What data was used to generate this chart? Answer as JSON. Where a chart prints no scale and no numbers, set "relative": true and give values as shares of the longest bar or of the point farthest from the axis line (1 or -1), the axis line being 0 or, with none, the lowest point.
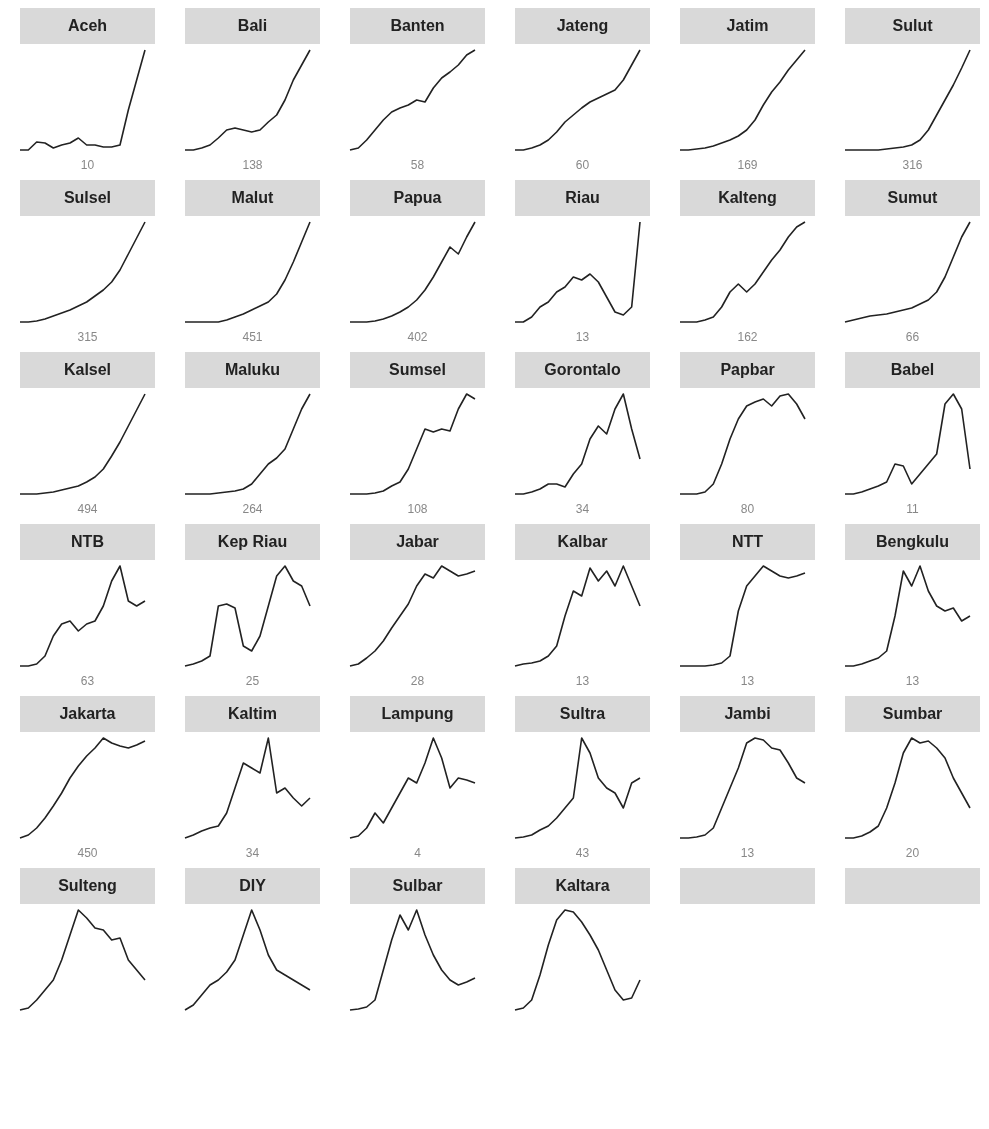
{
  "chart_data": [
    {
      "type": "line",
      "title": "Aceh",
      "relative": true,
      "color": "#222222",
      "annotations": [
        "10"
      ],
      "categories": [
        null,
        null,
        null,
        null,
        null,
        null,
        null,
        null,
        null,
        null,
        null,
        null,
        null,
        null,
        null,
        null
      ],
      "values": [
        0,
        0,
        0.08,
        0.07,
        0.02,
        0.05,
        0.07,
        0.12,
        0.05,
        0.05,
        0.03,
        0.03,
        0.05,
        0.4,
        0.7,
        1
      ]
    },
    {
      "type": "line",
      "title": "Bali",
      "relative": true,
      "color": "#222222",
      "annotations": [
        "138"
      ],
      "categories": [
        null,
        null,
        null,
        null,
        null,
        null,
        null,
        null,
        null,
        null,
        null,
        null,
        null,
        null,
        null,
        null
      ],
      "values": [
        0,
        0,
        0.02,
        0.05,
        0.12,
        0.2,
        0.22,
        0.2,
        0.18,
        0.2,
        0.28,
        0.35,
        0.5,
        0.7,
        0.85,
        1
      ]
    },
    {
      "type": "line",
      "title": "Banten",
      "relative": true,
      "color": "#222222",
      "annotations": [
        "58"
      ],
      "categories": [
        null,
        null,
        null,
        null,
        null,
        null,
        null,
        null,
        null,
        null,
        null,
        null,
        null,
        null,
        null,
        null
      ],
      "values": [
        0,
        0.02,
        0.1,
        0.2,
        0.3,
        0.38,
        0.42,
        0.45,
        0.5,
        0.48,
        0.62,
        0.72,
        0.78,
        0.85,
        0.95,
        1
      ]
    },
    {
      "type": "line",
      "title": "Jateng",
      "relative": true,
      "color": "#222222",
      "annotations": [
        "60"
      ],
      "categories": [
        null,
        null,
        null,
        null,
        null,
        null,
        null,
        null,
        null,
        null,
        null,
        null,
        null,
        null,
        null,
        null
      ],
      "values": [
        0,
        0,
        0.02,
        0.05,
        0.1,
        0.18,
        0.28,
        0.35,
        0.42,
        0.48,
        0.52,
        0.56,
        0.6,
        0.7,
        0.85,
        1
      ]
    },
    {
      "type": "line",
      "title": "Jatim",
      "relative": true,
      "color": "#222222",
      "annotations": [
        "169"
      ],
      "categories": [
        null,
        null,
        null,
        null,
        null,
        null,
        null,
        null,
        null,
        null,
        null,
        null,
        null,
        null,
        null,
        null
      ],
      "values": [
        0,
        0,
        0.01,
        0.02,
        0.04,
        0.07,
        0.1,
        0.14,
        0.2,
        0.3,
        0.45,
        0.58,
        0.68,
        0.8,
        0.9,
        1
      ]
    },
    {
      "type": "line",
      "title": "Sulut",
      "relative": true,
      "color": "#222222",
      "annotations": [
        "316"
      ],
      "categories": [
        null,
        null,
        null,
        null,
        null,
        null,
        null,
        null,
        null,
        null,
        null,
        null,
        null,
        null,
        null,
        null
      ],
      "values": [
        0,
        0,
        0,
        0,
        0,
        0.01,
        0.02,
        0.03,
        0.05,
        0.1,
        0.2,
        0.35,
        0.5,
        0.65,
        0.82,
        1
      ]
    },
    {
      "type": "line",
      "title": "Sulsel",
      "relative": true,
      "color": "#222222",
      "annotations": [
        "315"
      ],
      "categories": [
        null,
        null,
        null,
        null,
        null,
        null,
        null,
        null,
        null,
        null,
        null,
        null,
        null,
        null,
        null,
        null
      ],
      "values": [
        0,
        0,
        0.01,
        0.03,
        0.06,
        0.09,
        0.12,
        0.16,
        0.2,
        0.26,
        0.32,
        0.4,
        0.52,
        0.68,
        0.84,
        1
      ]
    },
    {
      "type": "line",
      "title": "Malut",
      "relative": true,
      "color": "#222222",
      "annotations": [
        "451"
      ],
      "categories": [
        null,
        null,
        null,
        null,
        null,
        null,
        null,
        null,
        null,
        null,
        null,
        null,
        null,
        null,
        null,
        null
      ],
      "values": [
        0,
        0,
        0,
        0,
        0,
        0.02,
        0.05,
        0.08,
        0.12,
        0.16,
        0.2,
        0.28,
        0.42,
        0.6,
        0.8,
        1
      ]
    },
    {
      "type": "line",
      "title": "Papua",
      "relative": true,
      "color": "#222222",
      "annotations": [
        "402"
      ],
      "categories": [
        null,
        null,
        null,
        null,
        null,
        null,
        null,
        null,
        null,
        null,
        null,
        null,
        null,
        null,
        null,
        null
      ],
      "values": [
        0,
        0,
        0,
        0.01,
        0.03,
        0.06,
        0.1,
        0.15,
        0.22,
        0.32,
        0.45,
        0.6,
        0.75,
        0.68,
        0.85,
        1
      ]
    },
    {
      "type": "line",
      "title": "Riau",
      "relative": true,
      "color": "#222222",
      "annotations": [
        "13"
      ],
      "categories": [
        null,
        null,
        null,
        null,
        null,
        null,
        null,
        null,
        null,
        null,
        null,
        null,
        null,
        null,
        null,
        null
      ],
      "values": [
        0,
        0,
        0.05,
        0.15,
        0.2,
        0.3,
        0.35,
        0.45,
        0.42,
        0.48,
        0.4,
        0.25,
        0.1,
        0.07,
        0.15,
        1
      ]
    },
    {
      "type": "line",
      "title": "Kalteng",
      "relative": true,
      "color": "#222222",
      "annotations": [
        "162"
      ],
      "categories": [
        null,
        null,
        null,
        null,
        null,
        null,
        null,
        null,
        null,
        null,
        null,
        null,
        null,
        null,
        null,
        null
      ],
      "values": [
        0,
        0,
        0,
        0.02,
        0.05,
        0.15,
        0.3,
        0.38,
        0.3,
        0.38,
        0.5,
        0.62,
        0.72,
        0.85,
        0.95,
        1
      ]
    },
    {
      "type": "line",
      "title": "Sumut",
      "relative": true,
      "color": "#222222",
      "annotations": [
        "66"
      ],
      "categories": [
        null,
        null,
        null,
        null,
        null,
        null,
        null,
        null,
        null,
        null,
        null,
        null,
        null,
        null,
        null,
        null
      ],
      "values": [
        0,
        0.02,
        0.04,
        0.06,
        0.07,
        0.08,
        0.1,
        0.12,
        0.14,
        0.18,
        0.22,
        0.3,
        0.45,
        0.65,
        0.85,
        1
      ]
    },
    {
      "type": "line",
      "title": "Kalsel",
      "relative": true,
      "color": "#222222",
      "annotations": [
        "494"
      ],
      "categories": [
        null,
        null,
        null,
        null,
        null,
        null,
        null,
        null,
        null,
        null,
        null,
        null,
        null,
        null,
        null,
        null
      ],
      "values": [
        0,
        0,
        0,
        0.01,
        0.02,
        0.04,
        0.06,
        0.08,
        0.12,
        0.17,
        0.25,
        0.38,
        0.52,
        0.68,
        0.84,
        1
      ]
    },
    {
      "type": "line",
      "title": "Maluku",
      "relative": true,
      "color": "#222222",
      "annotations": [
        "264"
      ],
      "categories": [
        null,
        null,
        null,
        null,
        null,
        null,
        null,
        null,
        null,
        null,
        null,
        null,
        null,
        null,
        null,
        null
      ],
      "values": [
        0,
        0,
        0,
        0,
        0.01,
        0.02,
        0.03,
        0.05,
        0.1,
        0.2,
        0.3,
        0.36,
        0.45,
        0.65,
        0.85,
        1
      ]
    },
    {
      "type": "line",
      "title": "Sumsel",
      "relative": true,
      "color": "#222222",
      "annotations": [
        "108"
      ],
      "categories": [
        null,
        null,
        null,
        null,
        null,
        null,
        null,
        null,
        null,
        null,
        null,
        null,
        null,
        null,
        null,
        null
      ],
      "values": [
        0,
        0,
        0,
        0.01,
        0.03,
        0.08,
        0.12,
        0.25,
        0.45,
        0.65,
        0.62,
        0.65,
        0.63,
        0.85,
        1,
        0.95
      ]
    },
    {
      "type": "line",
      "title": "Gorontalo",
      "relative": true,
      "color": "#222222",
      "annotations": [
        "34"
      ],
      "categories": [
        null,
        null,
        null,
        null,
        null,
        null,
        null,
        null,
        null,
        null,
        null,
        null,
        null,
        null,
        null,
        null
      ],
      "values": [
        0,
        0,
        0.02,
        0.05,
        0.1,
        0.1,
        0.07,
        0.2,
        0.3,
        0.55,
        0.68,
        0.6,
        0.85,
        1,
        0.65,
        0.35
      ]
    },
    {
      "type": "line",
      "title": "Papbar",
      "relative": true,
      "color": "#222222",
      "annotations": [
        "80"
      ],
      "categories": [
        null,
        null,
        null,
        null,
        null,
        null,
        null,
        null,
        null,
        null,
        null,
        null,
        null,
        null,
        null,
        null
      ],
      "values": [
        0,
        0,
        0,
        0.02,
        0.1,
        0.3,
        0.55,
        0.75,
        0.88,
        0.92,
        0.95,
        0.88,
        0.98,
        1,
        0.9,
        0.75
      ]
    },
    {
      "type": "line",
      "title": "Babel",
      "relative": true,
      "color": "#222222",
      "annotations": [
        "11"
      ],
      "categories": [
        null,
        null,
        null,
        null,
        null,
        null,
        null,
        null,
        null,
        null,
        null,
        null,
        null,
        null,
        null,
        null
      ],
      "values": [
        0,
        0,
        0.02,
        0.05,
        0.08,
        0.12,
        0.3,
        0.28,
        0.1,
        0.2,
        0.3,
        0.4,
        0.9,
        1,
        0.85,
        0.25
      ]
    },
    {
      "type": "line",
      "title": "NTB",
      "relative": true,
      "color": "#222222",
      "annotations": [
        "63"
      ],
      "categories": [
        null,
        null,
        null,
        null,
        null,
        null,
        null,
        null,
        null,
        null,
        null,
        null,
        null,
        null,
        null,
        null
      ],
      "values": [
        0,
        0,
        0.02,
        0.1,
        0.3,
        0.42,
        0.45,
        0.35,
        0.42,
        0.45,
        0.6,
        0.85,
        1,
        0.65,
        0.6,
        0.65
      ]
    },
    {
      "type": "line",
      "title": "Kep Riau",
      "relative": true,
      "color": "#222222",
      "annotations": [
        "25"
      ],
      "categories": [
        null,
        null,
        null,
        null,
        null,
        null,
        null,
        null,
        null,
        null,
        null,
        null,
        null,
        null,
        null,
        null
      ],
      "values": [
        0,
        0.02,
        0.05,
        0.1,
        0.6,
        0.62,
        0.58,
        0.2,
        0.15,
        0.3,
        0.6,
        0.9,
        1,
        0.85,
        0.8,
        0.6
      ]
    },
    {
      "type": "line",
      "title": "Jabar",
      "relative": true,
      "color": "#222222",
      "annotations": [
        "28"
      ],
      "categories": [
        null,
        null,
        null,
        null,
        null,
        null,
        null,
        null,
        null,
        null,
        null,
        null,
        null,
        null,
        null,
        null
      ],
      "values": [
        0,
        0.02,
        0.08,
        0.15,
        0.25,
        0.38,
        0.5,
        0.62,
        0.8,
        0.92,
        0.88,
        1,
        0.95,
        0.9,
        0.92,
        0.95
      ]
    },
    {
      "type": "line",
      "title": "Kalbar",
      "relative": true,
      "color": "#222222",
      "annotations": [
        "13"
      ],
      "categories": [
        null,
        null,
        null,
        null,
        null,
        null,
        null,
        null,
        null,
        null,
        null,
        null,
        null,
        null,
        null,
        null
      ],
      "values": [
        0,
        0.02,
        0.03,
        0.05,
        0.1,
        0.2,
        0.5,
        0.75,
        0.7,
        0.98,
        0.85,
        0.95,
        0.8,
        1,
        0.8,
        0.6
      ]
    },
    {
      "type": "line",
      "title": "NTT",
      "relative": true,
      "color": "#222222",
      "annotations": [
        "13"
      ],
      "categories": [
        null,
        null,
        null,
        null,
        null,
        null,
        null,
        null,
        null,
        null,
        null,
        null,
        null,
        null,
        null,
        null
      ],
      "values": [
        0,
        0,
        0,
        0,
        0.01,
        0.03,
        0.1,
        0.55,
        0.8,
        0.9,
        1,
        0.95,
        0.9,
        0.88,
        0.9,
        0.93
      ]
    },
    {
      "type": "line",
      "title": "Bengkulu",
      "relative": true,
      "color": "#222222",
      "annotations": [
        "13"
      ],
      "categories": [
        null,
        null,
        null,
        null,
        null,
        null,
        null,
        null,
        null,
        null,
        null,
        null,
        null,
        null,
        null,
        null
      ],
      "values": [
        0,
        0,
        0.02,
        0.05,
        0.08,
        0.15,
        0.5,
        0.95,
        0.8,
        1,
        0.75,
        0.6,
        0.55,
        0.58,
        0.45,
        0.5
      ]
    },
    {
      "type": "line",
      "title": "Jakarta",
      "relative": true,
      "color": "#222222",
      "annotations": [
        "450"
      ],
      "categories": [
        null,
        null,
        null,
        null,
        null,
        null,
        null,
        null,
        null,
        null,
        null,
        null,
        null,
        null,
        null,
        null
      ],
      "values": [
        0,
        0.03,
        0.1,
        0.2,
        0.32,
        0.45,
        0.6,
        0.72,
        0.82,
        0.9,
        1,
        0.95,
        0.92,
        0.9,
        0.93,
        0.97
      ]
    },
    {
      "type": "line",
      "title": "Kaltim",
      "relative": true,
      "color": "#222222",
      "annotations": [
        "34"
      ],
      "categories": [
        null,
        null,
        null,
        null,
        null,
        null,
        null,
        null,
        null,
        null,
        null,
        null,
        null,
        null,
        null,
        null
      ],
      "values": [
        0,
        0.03,
        0.07,
        0.1,
        0.12,
        0.25,
        0.5,
        0.75,
        0.7,
        0.65,
        1,
        0.45,
        0.5,
        0.4,
        0.32,
        0.4
      ]
    },
    {
      "type": "line",
      "title": "Lampung",
      "relative": true,
      "color": "#222222",
      "annotations": [
        "4"
      ],
      "categories": [
        null,
        null,
        null,
        null,
        null,
        null,
        null,
        null,
        null,
        null,
        null,
        null,
        null,
        null,
        null,
        null
      ],
      "values": [
        0,
        0.02,
        0.1,
        0.25,
        0.15,
        0.3,
        0.45,
        0.6,
        0.55,
        0.75,
        1,
        0.8,
        0.5,
        0.6,
        0.58,
        0.55
      ]
    },
    {
      "type": "line",
      "title": "Sultra",
      "relative": true,
      "color": "#222222",
      "annotations": [
        "43"
      ],
      "categories": [
        null,
        null,
        null,
        null,
        null,
        null,
        null,
        null,
        null,
        null,
        null,
        null,
        null,
        null,
        null,
        null
      ],
      "values": [
        0,
        0.01,
        0.03,
        0.08,
        0.12,
        0.2,
        0.3,
        0.4,
        1,
        0.85,
        0.6,
        0.5,
        0.45,
        0.3,
        0.55,
        0.6
      ]
    },
    {
      "type": "line",
      "title": "Jambi",
      "relative": true,
      "color": "#222222",
      "annotations": [
        "13"
      ],
      "categories": [
        null,
        null,
        null,
        null,
        null,
        null,
        null,
        null,
        null,
        null,
        null,
        null,
        null,
        null,
        null,
        null
      ],
      "values": [
        0,
        0,
        0.01,
        0.03,
        0.1,
        0.3,
        0.5,
        0.7,
        0.95,
        1,
        0.98,
        0.9,
        0.88,
        0.75,
        0.6,
        0.55
      ]
    },
    {
      "type": "line",
      "title": "Sumbar",
      "relative": true,
      "color": "#222222",
      "annotations": [
        "20"
      ],
      "categories": [
        null,
        null,
        null,
        null,
        null,
        null,
        null,
        null,
        null,
        null,
        null,
        null,
        null,
        null,
        null,
        null
      ],
      "values": [
        0,
        0,
        0.02,
        0.06,
        0.12,
        0.3,
        0.55,
        0.85,
        1,
        0.95,
        0.97,
        0.9,
        0.8,
        0.6,
        0.45,
        0.3
      ]
    },
    {
      "type": "line",
      "title": "Sulteng",
      "relative": true,
      "color": "#222222",
      "categories": [
        null,
        null,
        null,
        null,
        null,
        null,
        null,
        null,
        null,
        null,
        null,
        null,
        null,
        null,
        null,
        null
      ],
      "values": [
        0,
        0.02,
        0.1,
        0.2,
        0.3,
        0.5,
        0.75,
        1,
        0.92,
        0.82,
        0.8,
        0.7,
        0.72,
        0.5,
        0.4,
        0.3
      ]
    },
    {
      "type": "line",
      "title": "DIY",
      "relative": true,
      "color": "#222222",
      "categories": [
        null,
        null,
        null,
        null,
        null,
        null,
        null,
        null,
        null,
        null,
        null,
        null,
        null,
        null,
        null,
        null
      ],
      "values": [
        0,
        0.05,
        0.15,
        0.25,
        0.3,
        0.38,
        0.5,
        0.75,
        1,
        0.8,
        0.55,
        0.4,
        0.35,
        0.3,
        0.25,
        0.2
      ]
    },
    {
      "type": "line",
      "title": "Sulbar",
      "relative": true,
      "color": "#222222",
      "categories": [
        null,
        null,
        null,
        null,
        null,
        null,
        null,
        null,
        null,
        null,
        null,
        null,
        null,
        null,
        null,
        null
      ],
      "values": [
        0,
        0.01,
        0.03,
        0.1,
        0.4,
        0.7,
        0.95,
        0.8,
        1,
        0.75,
        0.55,
        0.4,
        0.3,
        0.25,
        0.28,
        0.32
      ]
    },
    {
      "type": "line",
      "title": "Kaltara",
      "relative": true,
      "color": "#222222",
      "categories": [
        null,
        null,
        null,
        null,
        null,
        null,
        null,
        null,
        null,
        null,
        null,
        null,
        null,
        null,
        null,
        null
      ],
      "values": [
        0,
        0.02,
        0.1,
        0.35,
        0.65,
        0.9,
        1,
        0.98,
        0.88,
        0.75,
        0.6,
        0.4,
        0.2,
        0.1,
        0.12,
        0.3
      ]
    }
  ]
}
